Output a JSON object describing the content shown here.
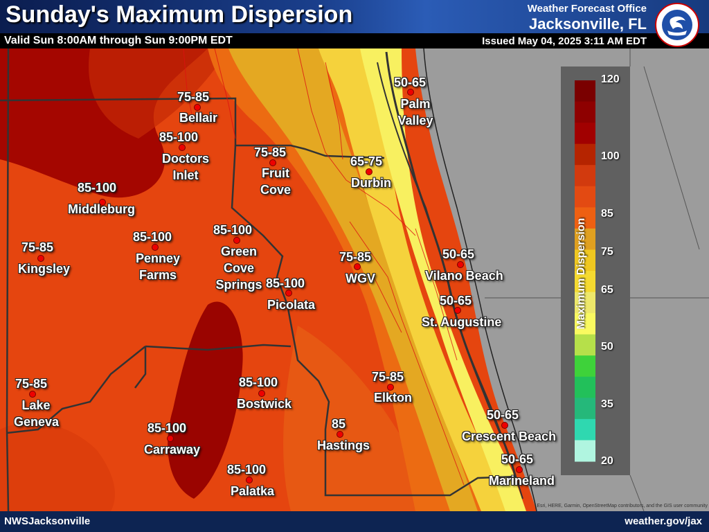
{
  "header": {
    "title": "Sunday's Maximum Dispersion",
    "valid": "Valid Sun 8:00AM through Sun 9:00PM EDT",
    "office": "Weather Forecast Office",
    "city": "Jacksonville, FL",
    "issued": "Issued May 04, 2025 3:11 AM EDT",
    "logo_text": "NATIONAL WEATHER SERVICE"
  },
  "footer": {
    "left": "NWSJacksonville",
    "right": "weather.gov/jax",
    "attribution": "Esri, HERE, Garmin, OpenStreetMap contributors, and the GIS user community"
  },
  "legend": {
    "title": "Maximum Dispersion",
    "ticks": [
      "120",
      "100",
      "85",
      "75",
      "65",
      "50",
      "35",
      "20"
    ],
    "colors": [
      "#7a0000",
      "#8e0000",
      "#a10000",
      "#b52400",
      "#d23a0e",
      "#e34a12",
      "#ee6012",
      "#e0a020",
      "#f0c820",
      "#f5da30",
      "#eee86a",
      "#fafa60",
      "#b6e04a",
      "#3ed23a",
      "#22c05a",
      "#25b87a",
      "#2fd8b0",
      "#b0f5e0"
    ]
  },
  "locations": [
    {
      "value": "75-85",
      "name": "Bellair"
    },
    {
      "value": "85-100",
      "name": "Doctors Inlet"
    },
    {
      "value": "75-85",
      "name": "Fruit Cove"
    },
    {
      "value": "85-100",
      "name": "Middleburg"
    },
    {
      "value": "85-100",
      "name": "Penney Farms"
    },
    {
      "value": "85-100",
      "name": "Green Cove Springs"
    },
    {
      "value": "75-85",
      "name": "Kingsley"
    },
    {
      "value": "85-100",
      "name": "Picolata"
    },
    {
      "value": "75-85",
      "name": "WGV"
    },
    {
      "value": "65-75",
      "name": "Durbin"
    },
    {
      "value": "50-65",
      "name": "Palm Valley"
    },
    {
      "value": "50-65",
      "name": "Vilano Beach"
    },
    {
      "value": "50-65",
      "name": "St. Augustine"
    },
    {
      "value": "75-85",
      "name": "Elkton"
    },
    {
      "value": "85-100",
      "name": "Bostwick"
    },
    {
      "value": "75-85",
      "name": "Lake Geneva"
    },
    {
      "value": "85-100",
      "name": "Carraway"
    },
    {
      "value": "85",
      "name": "Hastings"
    },
    {
      "value": "85-100",
      "name": "Palatka"
    },
    {
      "value": "50-65",
      "name": "Crescent Beach"
    },
    {
      "value": "50-65",
      "name": "Marineland"
    }
  ]
}
